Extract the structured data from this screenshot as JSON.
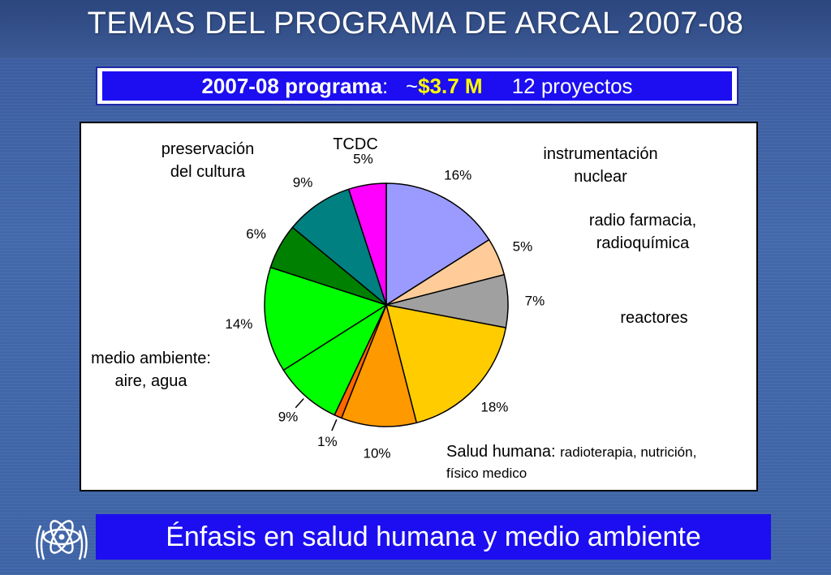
{
  "slide": {
    "title": "TEMAS DEL PROGRAMA DE ARCAL 2007-08",
    "banner": {
      "bold_part": "2007-08 programa",
      "colon": ":   ~",
      "amount": "$3.7 M",
      "projects": "     12 proyectos"
    },
    "footer": "Énfasis en salud humana y medio ambiente",
    "labels": {
      "preservacion": [
        "preservación",
        "del cultura"
      ],
      "tcdc": "TCDC",
      "instrumentacion": [
        "instrumentación",
        "nuclear"
      ],
      "radio": [
        "radio farmacia,",
        "radioquímica"
      ],
      "reactores": "reactores",
      "medio": [
        "medio ambiente:",
        "aire, agua"
      ],
      "salud_main": "Salud humana: ",
      "salud_small": "radioterapia, nutrición,",
      "salud_line2": "físico medico"
    }
  },
  "chart_data": {
    "type": "pie",
    "start": "12 o'clock, clockwise",
    "slices": [
      {
        "value": 16,
        "label": "16%",
        "color": "#9b9bff"
      },
      {
        "value": 5,
        "label": "5%",
        "color": "#ffcc99"
      },
      {
        "value": 7,
        "label": "7%",
        "color": "#a0a0a0"
      },
      {
        "value": 18,
        "label": "18%",
        "color": "#ffcc00"
      },
      {
        "value": 10,
        "label": "10%",
        "color": "#ff9900"
      },
      {
        "value": 1,
        "label": "1%",
        "color": "#ff6600"
      },
      {
        "value": 9,
        "label": "9%",
        "color": "#00ff00"
      },
      {
        "value": 14,
        "label": "14%",
        "color": "#00ff00"
      },
      {
        "value": 6,
        "label": "6%",
        "color": "#008000"
      },
      {
        "value": 9,
        "label": "9%",
        "color": "#008080"
      },
      {
        "value": 5,
        "label": "5%",
        "color": "#ff00ff"
      }
    ]
  }
}
